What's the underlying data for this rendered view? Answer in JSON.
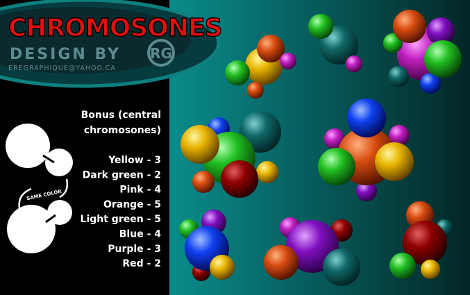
{
  "header": {
    "title": "CHROMOSONES",
    "credit": "Design by",
    "logo": "RG",
    "email": "EREGRAPHIQUE@YAHOO.CA"
  },
  "legend": {
    "hint": "SAME COLOR",
    "bonus": "Bonus (central chromosones)",
    "scores": [
      "Yellow - 3",
      "Dark green - 2",
      "Pink - 4",
      "Orange - 5",
      "Light green - 5",
      "Blue - 4",
      "Purple - 3",
      "Red - 2"
    ]
  }
}
